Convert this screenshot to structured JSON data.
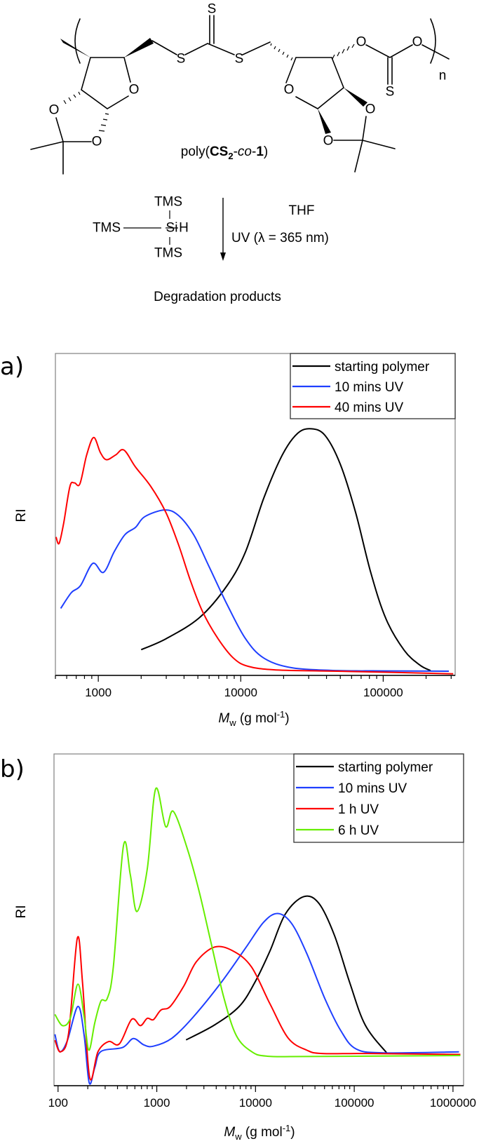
{
  "scheme": {
    "atoms": {
      "S": "S",
      "O": "O",
      "n": "n"
    },
    "polymer_label": {
      "prefix": "poly(",
      "cs": "CS",
      "sub": "2",
      "dash1": "-",
      "co": "co",
      "dash2": "-",
      "one": "1",
      "close": ")"
    },
    "reagent": {
      "tms_top": "TMS",
      "tms_left": "TMS",
      "si": "Si",
      "h": "H",
      "tms_bottom": "TMS"
    },
    "conditions": {
      "solvent": "THF",
      "uv": "UV (λ = 365 nm)"
    },
    "product": "Degradation products"
  },
  "chart_data": [
    {
      "panel_label": "a)",
      "type": "line",
      "xlabel": {
        "m": "M",
        "sub": "w",
        "rest": " (g mol",
        "sup": "-1",
        "close": ")"
      },
      "ylabel": "RI",
      "xscale": "log",
      "xlim": [
        500,
        320000
      ],
      "ylim": [
        0,
        1
      ],
      "xticks": [
        1000,
        10000,
        100000
      ],
      "xtick_labels": [
        "1000",
        "10000",
        "100000"
      ],
      "grid": false,
      "legend_position": "top-right",
      "series": [
        {
          "name": "starting polymer",
          "color": "#000000",
          "points": [
            [
              2000,
              0.08
            ],
            [
              2990,
              0.114
            ],
            [
              5150,
              0.18
            ],
            [
              8050,
              0.28
            ],
            [
              10800,
              0.384
            ],
            [
              14500,
              0.55
            ],
            [
              19600,
              0.685
            ],
            [
              25100,
              0.752
            ],
            [
              31300,
              0.766
            ],
            [
              39100,
              0.745
            ],
            [
              50100,
              0.655
            ],
            [
              64100,
              0.505
            ],
            [
              82100,
              0.317
            ],
            [
              105000,
              0.174
            ],
            [
              141000,
              0.077
            ],
            [
              181000,
              0.032
            ],
            [
              215000,
              0.015
            ]
          ]
        },
        {
          "name": "10 mins UV",
          "color": "#1f3fff",
          "points": [
            [
              545,
              0.208
            ],
            [
              647,
              0.257
            ],
            [
              750,
              0.279
            ],
            [
              915,
              0.348
            ],
            [
              1087,
              0.32
            ],
            [
              1293,
              0.384
            ],
            [
              1537,
              0.437
            ],
            [
              1827,
              0.46
            ],
            [
              2119,
              0.493
            ],
            [
              2922,
              0.514
            ],
            [
              3650,
              0.497
            ],
            [
              4670,
              0.437
            ],
            [
              5980,
              0.339
            ],
            [
              8050,
              0.219
            ],
            [
              10800,
              0.114
            ],
            [
              14500,
              0.054
            ],
            [
              22700,
              0.024
            ],
            [
              47600,
              0.015
            ],
            [
              100000,
              0.014
            ],
            [
              289000,
              0.013
            ]
          ]
        },
        {
          "name": "40 mins UV",
          "color": "#ff0000",
          "points": [
            [
              505,
              0.43
            ],
            [
              531,
              0.41
            ],
            [
              572,
              0.474
            ],
            [
              632,
              0.587
            ],
            [
              680,
              0.598
            ],
            [
              743,
              0.595
            ],
            [
              829,
              0.685
            ],
            [
              929,
              0.739
            ],
            [
              1035,
              0.692
            ],
            [
              1143,
              0.67
            ],
            [
              1325,
              0.685
            ],
            [
              1514,
              0.7
            ],
            [
              1827,
              0.647
            ],
            [
              2337,
              0.587
            ],
            [
              2990,
              0.505
            ],
            [
              3650,
              0.407
            ],
            [
              4440,
              0.294
            ],
            [
              5410,
              0.197
            ],
            [
              6930,
              0.114
            ],
            [
              8870,
              0.054
            ],
            [
              11300,
              0.028
            ],
            [
              17700,
              0.017
            ],
            [
              47600,
              0.013
            ],
            [
              128000,
              0.009
            ],
            [
              310000,
              0.005
            ]
          ]
        }
      ]
    },
    {
      "panel_label": "b)",
      "type": "line",
      "xlabel": {
        "m": "M",
        "sub": "w",
        "rest": " (g mol",
        "sup": "-1",
        "close": ")"
      },
      "ylabel": "RI",
      "xscale": "log",
      "xlim": [
        91,
        1280000
      ],
      "ylim": [
        0,
        1
      ],
      "xticks": [
        100,
        1000,
        10000,
        100000,
        1000000
      ],
      "xtick_labels": [
        "100",
        "1000",
        "10000",
        "100000",
        "1000000"
      ],
      "grid": false,
      "legend_position": "top-right",
      "series": [
        {
          "name": "starting polymer",
          "color": "#000000",
          "points": [
            [
              1980,
              0.138
            ],
            [
              3850,
              0.183
            ],
            [
              6840,
              0.239
            ],
            [
              9790,
              0.31
            ],
            [
              14000,
              0.406
            ],
            [
              20000,
              0.517
            ],
            [
              30800,
              0.57
            ],
            [
              44000,
              0.549
            ],
            [
              63000,
              0.453
            ],
            [
              90200,
              0.31
            ],
            [
              129000,
              0.183
            ],
            [
              213000,
              0.099
            ]
          ]
        },
        {
          "name": "10 mins UV",
          "color": "#1f3fff",
          "points": [
            [
              93,
              0.155
            ],
            [
              104,
              0.103
            ],
            [
              124,
              0.135
            ],
            [
              159,
              0.239
            ],
            [
              184,
              0.151
            ],
            [
              207,
              0.008
            ],
            [
              236,
              0.056
            ],
            [
              272,
              0.103
            ],
            [
              450,
              0.115
            ],
            [
              578,
              0.142
            ],
            [
              740,
              0.123
            ],
            [
              923,
              0.119
            ],
            [
              1420,
              0.143
            ],
            [
              2340,
              0.207
            ],
            [
              4460,
              0.31
            ],
            [
              7890,
              0.414
            ],
            [
              12100,
              0.493
            ],
            [
              16800,
              0.519
            ],
            [
              23200,
              0.489
            ],
            [
              33100,
              0.398
            ],
            [
              50500,
              0.262
            ],
            [
              72700,
              0.167
            ],
            [
              104000,
              0.111
            ],
            [
              200000,
              0.099
            ],
            [
              1150000,
              0.102
            ]
          ]
        },
        {
          "name": "1 h UV",
          "color": "#ff0000",
          "points": [
            [
              93,
              0.137
            ],
            [
              106,
              0.102
            ],
            [
              128,
              0.159
            ],
            [
              157,
              0.445
            ],
            [
              177,
              0.31
            ],
            [
              209,
              0.025
            ],
            [
              254,
              0.103
            ],
            [
              326,
              0.133
            ],
            [
              418,
              0.126
            ],
            [
              557,
              0.2
            ],
            [
              682,
              0.181
            ],
            [
              800,
              0.203
            ],
            [
              923,
              0.199
            ],
            [
              1100,
              0.228
            ],
            [
              1370,
              0.239
            ],
            [
              1890,
              0.302
            ],
            [
              2520,
              0.374
            ],
            [
              3850,
              0.418
            ],
            [
              5930,
              0.406
            ],
            [
              9100,
              0.358
            ],
            [
              14000,
              0.247
            ],
            [
              21500,
              0.143
            ],
            [
              33100,
              0.107
            ],
            [
              47100,
              0.097
            ],
            [
              137000,
              0.097
            ],
            [
              1190000,
              0.094
            ]
          ]
        },
        {
          "name": "6 h UV",
          "color": "#66ee00",
          "points": [
            [
              93,
              0.215
            ],
            [
              111,
              0.181
            ],
            [
              133,
              0.203
            ],
            [
              159,
              0.306
            ],
            [
              184,
              0.207
            ],
            [
              205,
              0.107
            ],
            [
              236,
              0.191
            ],
            [
              272,
              0.255
            ],
            [
              315,
              0.263
            ],
            [
              363,
              0.358
            ],
            [
              460,
              0.724
            ],
            [
              539,
              0.636
            ],
            [
              630,
              0.525
            ],
            [
              800,
              0.652
            ],
            [
              975,
              0.895
            ],
            [
              1230,
              0.781
            ],
            [
              1470,
              0.827
            ],
            [
              2030,
              0.716
            ],
            [
              2710,
              0.581
            ],
            [
              3600,
              0.422
            ],
            [
              4800,
              0.263
            ],
            [
              6390,
              0.151
            ],
            [
              9100,
              0.103
            ],
            [
              13000,
              0.089
            ],
            [
              33100,
              0.088
            ],
            [
              1190000,
              0.091
            ]
          ]
        }
      ]
    }
  ]
}
